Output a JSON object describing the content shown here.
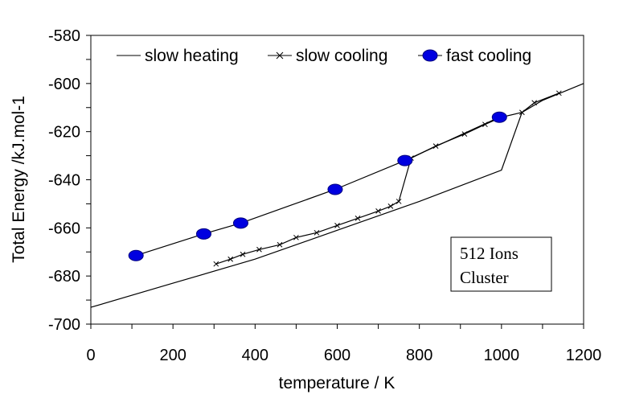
{
  "chart_data": {
    "type": "line",
    "xlabel": "temperature / K",
    "ylabel": "Total Energy /kJ.mol-1",
    "xlim": [
      0,
      1200
    ],
    "ylim": [
      -700,
      -580
    ],
    "x_ticks": [
      0,
      200,
      400,
      600,
      800,
      1000,
      1200
    ],
    "y_ticks": [
      -580,
      -600,
      -620,
      -640,
      -660,
      -680,
      -700
    ],
    "x_tick_labels": [
      "0",
      "200",
      "400",
      "600",
      "800",
      "1000",
      "1200"
    ],
    "y_tick_labels": [
      "-580",
      "-600",
      "-620",
      "-640",
      "-660",
      "-680",
      "-700"
    ],
    "grid": false,
    "legend_position": "top",
    "annotation": [
      "512 Ions",
      "Cluster"
    ],
    "series": [
      {
        "name": "slow heating",
        "marker": "none",
        "x": [
          0,
          200,
          400,
          600,
          800,
          1000,
          1050,
          1100,
          1200
        ],
        "y": [
          -693,
          -683,
          -673,
          -661,
          -649,
          -636,
          -612,
          -607,
          -600
        ]
      },
      {
        "name": "slow cooling",
        "marker": "x",
        "x": [
          1140,
          1080,
          1050,
          1000,
          960,
          910,
          840,
          780,
          750,
          730,
          700,
          650,
          600,
          550,
          500,
          460,
          410,
          370,
          340,
          305
        ],
        "y": [
          -604,
          -608,
          -612,
          -614,
          -617,
          -621,
          -626,
          -631,
          -649,
          -651,
          -653,
          -656,
          -659,
          -662,
          -664,
          -667,
          -669,
          -671,
          -673,
          -675
        ]
      },
      {
        "name": "fast cooling",
        "marker": "circle",
        "x": [
          110,
          275,
          365,
          595,
          765,
          995
        ],
        "y": [
          -671.5,
          -662.5,
          -658,
          -644,
          -632,
          -614
        ]
      }
    ]
  }
}
